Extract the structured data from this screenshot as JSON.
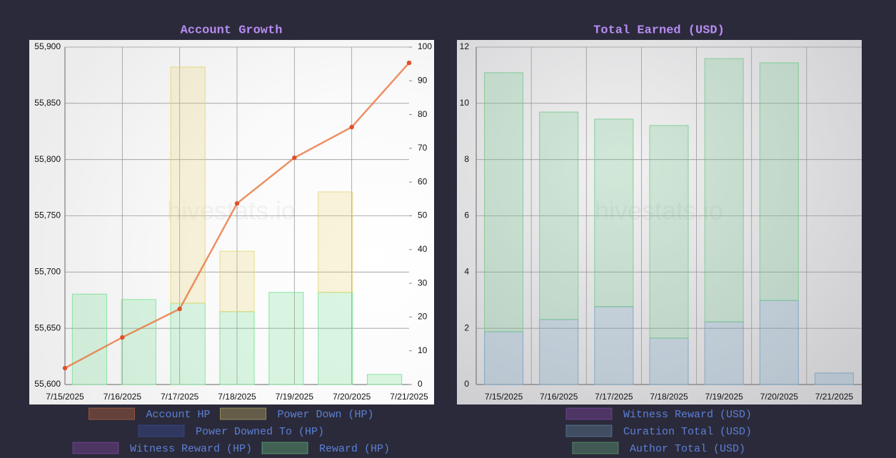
{
  "chart_data": [
    {
      "type": "bar",
      "title": "Account Growth",
      "watermark": "hivestats.io",
      "categories": [
        "7/15/2025",
        "7/16/2025",
        "7/17/2025",
        "7/18/2025",
        "7/19/2025",
        "7/20/2025",
        "7/21/2025"
      ],
      "ylim": [
        55600,
        55900
      ],
      "yticks": [
        {
          "value": 55600,
          "label": "55,600"
        },
        {
          "value": 55650,
          "label": "55,650"
        },
        {
          "value": 55700,
          "label": "55,700"
        },
        {
          "value": 55750,
          "label": "55,750"
        },
        {
          "value": 55800,
          "label": "55,800"
        },
        {
          "value": 55850,
          "label": "55,850"
        },
        {
          "value": 55900,
          "label": "55,900"
        }
      ],
      "y2lim": [
        0,
        100
      ],
      "y2ticks": [
        0,
        10,
        20,
        30,
        40,
        50,
        60,
        70,
        80,
        90,
        100
      ],
      "grid": true,
      "series": [
        {
          "name": "Account HP",
          "type": "line",
          "axis": "y",
          "color": "#e8763f",
          "values": [
            55614.6,
            55641.9,
            55667.2,
            55761,
            55801.6,
            55828.9,
            55886
          ]
        },
        {
          "name": "Power Down (HP)",
          "type": "bar",
          "axis": "y2",
          "color": "#e6d36e",
          "values": [
            null,
            null,
            70.0,
            17.9,
            null,
            29.8,
            null
          ]
        },
        {
          "name": "Power Downed To (HP)",
          "type": "bar",
          "axis": "y2",
          "color": "#3b5bb8",
          "values": [
            null,
            null,
            null,
            null,
            null,
            null,
            null
          ]
        },
        {
          "name": "Witness Reward (HP)",
          "type": "bar",
          "axis": "y2",
          "color": "#9b4fc8",
          "values": [
            null,
            null,
            null,
            null,
            null,
            null,
            null
          ]
        },
        {
          "name": "Reward (HP)",
          "type": "bar",
          "axis": "y2",
          "color": "#6fe08f",
          "values": [
            26.8,
            25.2,
            24.1,
            21.6,
            27.3,
            27.3,
            3.0
          ]
        }
      ]
    },
    {
      "type": "bar",
      "title": "Total Earned (USD)",
      "watermark": "hivestats.io",
      "categories": [
        "7/15/2025",
        "7/16/2025",
        "7/17/2025",
        "7/18/2025",
        "7/19/2025",
        "7/20/2025",
        "7/21/2025"
      ],
      "ylim": [
        0,
        12
      ],
      "yticks": [
        0,
        2,
        4,
        6,
        8,
        10,
        12
      ],
      "grid": true,
      "series": [
        {
          "name": "Witness Reward (USD)",
          "type": "bar",
          "color": "#9b4fc8",
          "values": [
            null,
            null,
            null,
            null,
            null,
            null,
            null
          ]
        },
        {
          "name": "Curation Total (USD)",
          "type": "bar",
          "color": "#6f9fc0",
          "values": [
            1.88,
            2.31,
            2.77,
            1.65,
            2.23,
            2.99,
            0.41
          ]
        },
        {
          "name": "Author Total (USD)",
          "type": "bar",
          "color": "#6fc88a",
          "values": [
            9.21,
            7.38,
            6.67,
            7.56,
            9.36,
            8.45,
            0
          ]
        }
      ]
    }
  ]
}
